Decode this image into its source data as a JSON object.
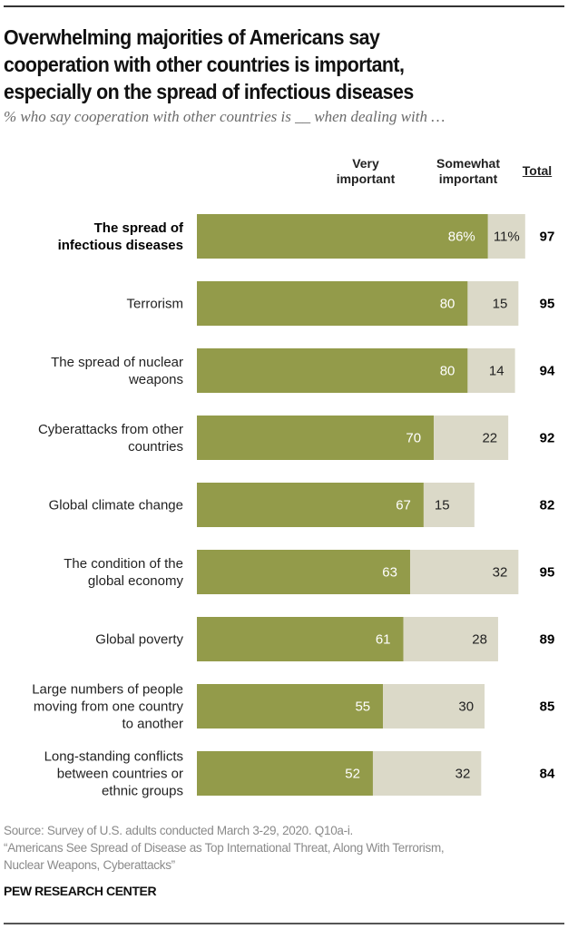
{
  "header": {
    "title_lines": [
      "Overwhelming majorities of Americans say",
      "cooperation with other countries is important,",
      "especially on the spread of infectious diseases"
    ],
    "subtitle": "% who say cooperation with other countries is __ when dealing with …"
  },
  "colors": {
    "very_important": "#939b4a",
    "somewhat_important": "#dbd9c8",
    "very_label": "#ffffff",
    "somewhat_label": "#222222"
  },
  "chart_data": {
    "type": "bar",
    "orientation": "horizontal",
    "stacked": true,
    "title": "Overwhelming majorities of Americans say cooperation with other countries is important, especially on the spread of infectious diseases",
    "subtitle": "% who say cooperation with other countries is __ when dealing with …",
    "column_headers": {
      "very": [
        "Very",
        "important"
      ],
      "somewhat": [
        "Somewhat",
        "important"
      ],
      "total": "Total"
    },
    "categories": [
      "The spread of infectious diseases",
      "Terrorism",
      "The spread of nuclear weapons",
      "Cyberattacks from other countries",
      "Global climate change",
      "The condition of the global economy",
      "Global poverty",
      "Large numbers of people moving from one country to another",
      "Long-standing conflicts between countries or ethnic groups"
    ],
    "category_label_lines": [
      [
        "The spread of",
        "infectious diseases"
      ],
      [
        "Terrorism"
      ],
      [
        "The spread of nuclear",
        "weapons"
      ],
      [
        "Cyberattacks from other",
        "countries"
      ],
      [
        "Global climate change"
      ],
      [
        "The condition of the",
        "global economy"
      ],
      [
        "Global poverty"
      ],
      [
        "Large numbers of people",
        "moving from one country",
        "to another"
      ],
      [
        "Long-standing conflicts",
        "between countries or",
        "ethnic groups"
      ]
    ],
    "highlighted_category": 0,
    "series": [
      {
        "name": "Very important",
        "values": [
          86,
          80,
          80,
          70,
          67,
          63,
          61,
          55,
          52
        ],
        "labels": [
          "86%",
          "80",
          "80",
          "70",
          "67",
          "63",
          "61",
          "55",
          "52"
        ]
      },
      {
        "name": "Somewhat important",
        "values": [
          11,
          15,
          14,
          22,
          15,
          32,
          28,
          30,
          32
        ],
        "labels": [
          "11%",
          "15",
          "14",
          "22",
          "15",
          "32",
          "28",
          "30",
          "32"
        ]
      }
    ],
    "totals": [
      97,
      95,
      94,
      92,
      82,
      95,
      89,
      85,
      84
    ],
    "xlim": [
      0,
      100
    ],
    "grid": false,
    "legend": "column headers above bars"
  },
  "footer": {
    "source_lines": [
      "Source: Survey of U.S. adults conducted March 3-29, 2020. Q10a-i.",
      "“Americans See Spread of Disease as Top International Threat, Along With Terrorism,",
      "Nuclear Weapons, Cyberattacks”"
    ],
    "brand": "PEW RESEARCH CENTER"
  }
}
